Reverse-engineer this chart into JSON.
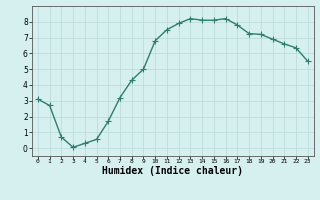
{
  "x": [
    0,
    1,
    2,
    3,
    4,
    5,
    6,
    7,
    8,
    9,
    10,
    11,
    12,
    13,
    14,
    15,
    16,
    17,
    18,
    19,
    20,
    21,
    22,
    23
  ],
  "y": [
    3.1,
    2.7,
    0.7,
    0.05,
    0.3,
    0.55,
    1.7,
    3.2,
    4.3,
    5.0,
    6.8,
    7.5,
    7.9,
    8.2,
    8.1,
    8.1,
    8.2,
    7.8,
    7.25,
    7.2,
    6.9,
    6.6,
    6.35,
    5.5
  ],
  "line_color": "#2e7d6e",
  "marker": "+",
  "markersize": 4,
  "linewidth": 1.0,
  "xlabel": "Humidex (Indice chaleur)",
  "xlabel_fontsize": 7,
  "bg_color": "#d6f0f0",
  "grid_color": "#b8d8d8",
  "grid_linewidth": 0.5,
  "xlim": [
    -0.5,
    23.5
  ],
  "ylim": [
    -0.5,
    9.0
  ],
  "yticks": [
    0,
    1,
    2,
    3,
    4,
    5,
    6,
    7,
    8
  ],
  "xticks": [
    0,
    1,
    2,
    3,
    4,
    5,
    6,
    7,
    8,
    9,
    10,
    11,
    12,
    13,
    14,
    15,
    16,
    17,
    18,
    19,
    20,
    21,
    22,
    23
  ]
}
